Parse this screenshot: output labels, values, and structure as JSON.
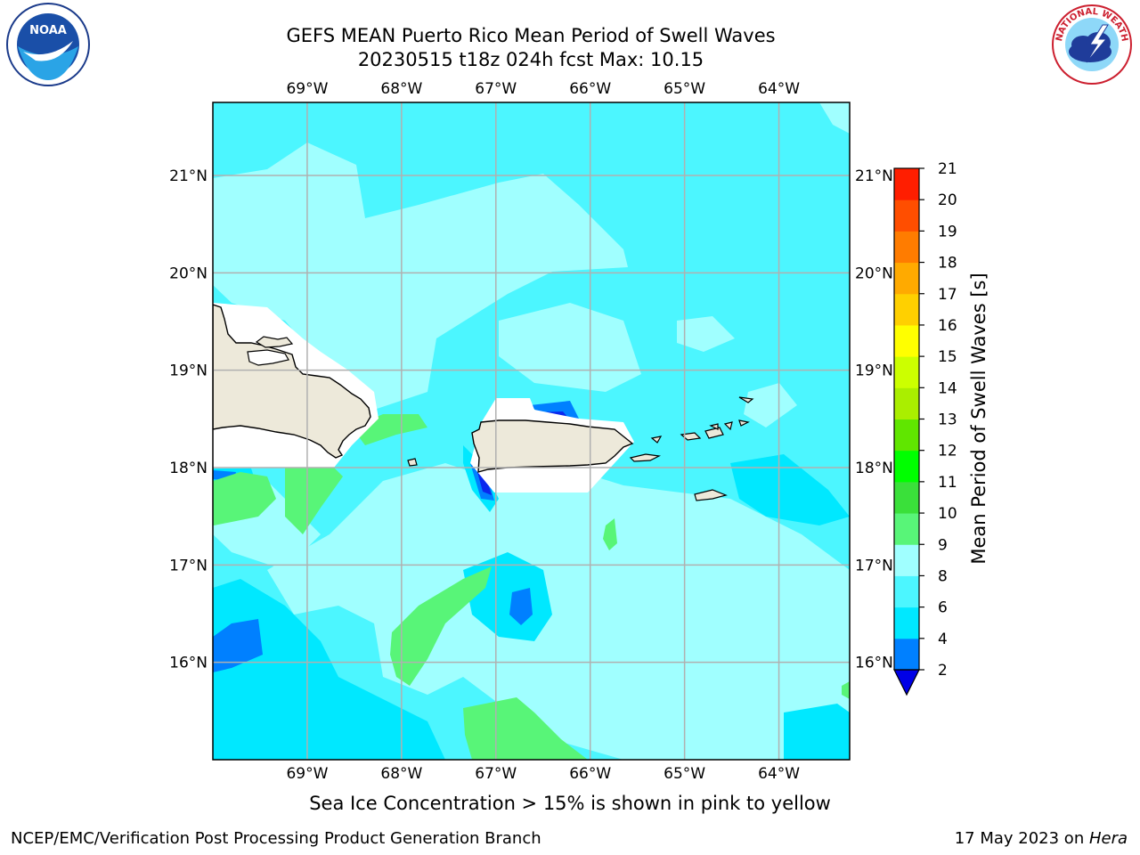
{
  "title": {
    "line1": "GEFS MEAN Puerto Rico Mean Period of Swell Waves",
    "line2": "20230515 t18z 024h fcst    Max: 10.15"
  },
  "logos": {
    "left": {
      "name": "noaa-logo",
      "text": "NOAA"
    },
    "right": {
      "name": "national-weather-service-logo",
      "text": "NATIONAL WEATHER SERVICE"
    }
  },
  "map": {
    "lon_ticks": [
      "69°W",
      "68°W",
      "67°W",
      "66°W",
      "65°W",
      "64°W"
    ],
    "lat_ticks": [
      "21°N",
      "20°N",
      "19°N",
      "18°N",
      "17°N",
      "16°N"
    ],
    "lon_values": [
      -69,
      -68,
      -67,
      -66,
      -65,
      -64
    ],
    "lat_values": [
      21,
      20,
      19,
      18,
      17,
      16
    ],
    "extent": {
      "lon_min": -70,
      "lon_max": -63.25,
      "lat_min": 15,
      "lat_max": 21.75
    },
    "land_color": "#ede9da",
    "coast_color": "#000000",
    "gridline_color": "#b0b0b0"
  },
  "colorbar": {
    "label": "Mean Period of Swell Waves [s]",
    "ticks": [
      "2",
      "4",
      "6",
      "8",
      "9",
      "10",
      "11",
      "12",
      "13",
      "14",
      "15",
      "16",
      "17",
      "18",
      "19",
      "20",
      "21"
    ],
    "colors": [
      "#0a28ee",
      "#0080ff",
      "#00e8ff",
      "#4cf6ff",
      "#a0ffff",
      "#58f578",
      "#3ae03a",
      "#00ff00",
      "#60e600",
      "#aaee00",
      "#ccff00",
      "#ffff00",
      "#ffd000",
      "#ffaa00",
      "#ff7c00",
      "#ff4e00",
      "#ff1e00",
      "#ff0000"
    ],
    "under_color": "#0000e6"
  },
  "caption": "Sea Ice Concentration > 15% is shown in pink to yellow",
  "footer": {
    "left": "NCEP/EMC/Verification Post Processing Product Generation Branch",
    "date": "17 May 2023 on ",
    "machine": "Hera"
  }
}
